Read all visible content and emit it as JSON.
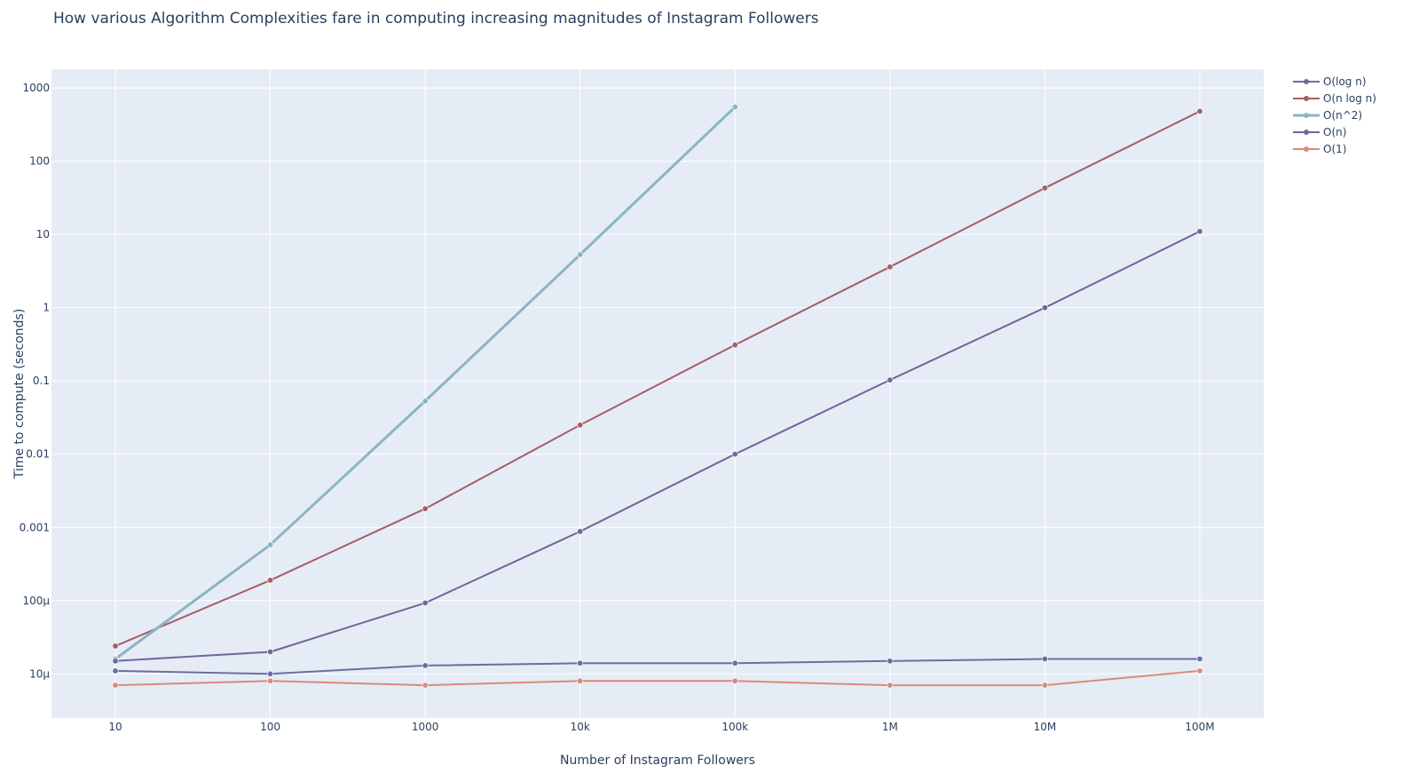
{
  "chart_data": {
    "type": "line",
    "title": "How various Algorithm Complexities fare in computing increasing magnitudes of Instagram Followers",
    "xlabel": "Number of Instagram Followers",
    "ylabel": "Time to compute (seconds)",
    "x_scale": "log",
    "y_scale": "log",
    "x": [
      10,
      100,
      1000,
      10000,
      100000,
      1000000,
      10000000,
      100000000
    ],
    "x_tick_labels": [
      "10",
      "100",
      "1000",
      "10k",
      "100k",
      "1M",
      "10M",
      "100M"
    ],
    "y_ticks": [
      1e-05,
      0.0001,
      0.001,
      0.01,
      0.1,
      1,
      10,
      100,
      1000
    ],
    "y_tick_labels": [
      "10µ",
      "100µ",
      "0.001",
      "0.01",
      "0.1",
      "1",
      "10",
      "100",
      "1000"
    ],
    "ylim": [
      2.5e-06,
      1800
    ],
    "grid": true,
    "legend_position": "top-right",
    "series": [
      {
        "name": "O(log n)",
        "color": "#6a6e9f",
        "values": [
          1.1e-05,
          1e-05,
          1.3e-05,
          1.4e-05,
          1.4e-05,
          1.5e-05,
          1.6e-05,
          1.6e-05
        ]
      },
      {
        "name": "O(n log n)",
        "color": "#a65d63",
        "values": [
          2.4e-05,
          0.00019,
          0.0018,
          0.025,
          0.31,
          3.6,
          43,
          480
        ]
      },
      {
        "name": "O(n^2)",
        "color": "#8eb3c2",
        "values": [
          1.6e-05,
          0.00058,
          0.053,
          5.3,
          550,
          null,
          null,
          null
        ]
      },
      {
        "name": "O(n)",
        "color": "#72649c",
        "values": [
          1.5e-05,
          2e-05,
          9.3e-05,
          0.00088,
          0.01,
          0.103,
          1.0,
          11
        ]
      },
      {
        "name": "O(1)",
        "color": "#d98b78",
        "values": [
          7e-06,
          8e-06,
          7e-06,
          8e-06,
          8e-06,
          7e-06,
          7e-06,
          1.1e-05
        ]
      }
    ]
  }
}
